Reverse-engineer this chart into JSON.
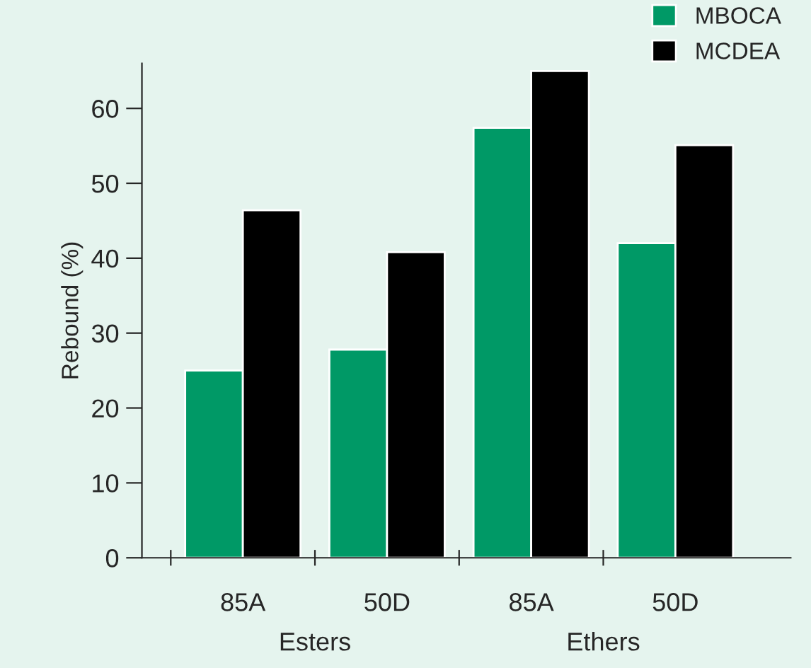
{
  "chart_data": {
    "type": "bar",
    "ylabel": "Rebound (%)",
    "categories": [
      "85A",
      "50D",
      "85A",
      "50D"
    ],
    "series": [
      {
        "name": "MBOCA",
        "color": "#009966",
        "values": [
          25.0,
          27.8,
          57.4,
          42.0
        ]
      },
      {
        "name": "MCDEA",
        "color": "#000000",
        "values": [
          46.4,
          40.8,
          65.0,
          55.1
        ]
      }
    ],
    "ylim": [
      0,
      66
    ],
    "yticks": [
      0,
      10,
      20,
      30,
      40,
      50,
      60
    ],
    "annotations": [
      "Esters",
      "Ethers"
    ],
    "legend": "top right",
    "grid": false
  }
}
